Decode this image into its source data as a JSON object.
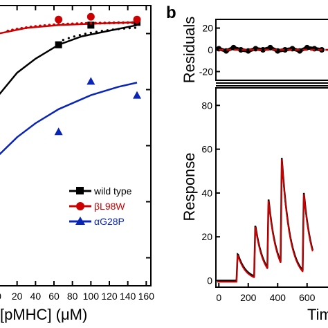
{
  "panel_b_label": "b",
  "chart_data": [
    {
      "type": "scatter",
      "panel": "a",
      "xlabel": "[pMHC] (μM)",
      "ylabel": "",
      "xlim": [
        0,
        165
      ],
      "ylim": [
        0,
        1.0
      ],
      "xticks": [
        0,
        20,
        40,
        60,
        80,
        100,
        120,
        140,
        160
      ],
      "legend_position": "bottom-right",
      "series": [
        {
          "name": "wild type",
          "color": "#000000",
          "marker": "square",
          "points": [
            [
              65,
              0.86
            ],
            [
              100,
              0.93
            ],
            [
              150,
              0.94
            ]
          ],
          "fit": [
            [
              -10,
              0.62
            ],
            [
              0,
              0.68
            ],
            [
              20,
              0.76
            ],
            [
              40,
              0.81
            ],
            [
              65,
              0.86
            ],
            [
              90,
              0.89
            ],
            [
              120,
              0.91
            ],
            [
              150,
              0.93
            ]
          ]
        },
        {
          "name": "βL98W",
          "color": "#cc0000",
          "marker": "circle",
          "points": [
            [
              65,
              0.95
            ],
            [
              100,
              0.96
            ],
            [
              150,
              0.95
            ]
          ],
          "fit": [
            [
              -10,
              0.88
            ],
            [
              0,
              0.9
            ],
            [
              30,
              0.92
            ],
            [
              65,
              0.93
            ],
            [
              100,
              0.935
            ],
            [
              150,
              0.94
            ]
          ]
        },
        {
          "name": "αG28P",
          "color": "#0a24b5",
          "marker": "triangle",
          "points": [
            [
              65,
              0.55
            ],
            [
              100,
              0.73
            ],
            [
              150,
              0.68
            ]
          ],
          "fit": [
            [
              -5,
              0.45
            ],
            [
              20,
              0.53
            ],
            [
              40,
              0.58
            ],
            [
              65,
              0.63
            ],
            [
              100,
              0.68
            ],
            [
              130,
              0.71
            ],
            [
              150,
              0.725
            ]
          ]
        }
      ],
      "legend": [
        "wild type",
        "βL98W",
        "αG28P"
      ]
    },
    {
      "type": "line",
      "panel": "b-residuals",
      "ylabel": "Residuals",
      "ylim": [
        -28,
        28
      ],
      "yticks": [
        -20,
        0,
        20
      ],
      "xlim": [
        -20,
        780
      ],
      "description_series": [
        {
          "name": "residuals",
          "color": "#000000",
          "x": [
            0,
            50,
            100,
            150,
            200,
            250,
            300,
            350,
            400,
            450,
            500,
            550,
            600,
            650,
            700
          ],
          "y": [
            1,
            -1,
            2,
            0,
            -1,
            1,
            0,
            2,
            -1,
            0,
            1,
            -1,
            2,
            1,
            0
          ]
        },
        {
          "name": "zero",
          "color": "#cc0000",
          "x": [
            0,
            780
          ],
          "y": [
            0,
            0
          ]
        }
      ]
    },
    {
      "type": "line",
      "panel": "b-sensorgram",
      "xlabel": "Tim",
      "ylabel": "Response",
      "xlim": [
        -20,
        780
      ],
      "ylim": [
        -3,
        88
      ],
      "xticks": [
        0,
        200,
        400,
        600
      ],
      "yticks": [
        0,
        20,
        40,
        60,
        80
      ],
      "injections": [
        {
          "start": 120,
          "end": 240,
          "peak": 12
        },
        {
          "start": 240,
          "end": 330,
          "peak": 25
        },
        {
          "start": 330,
          "end": 420,
          "peak": 37
        },
        {
          "start": 420,
          "end": 570,
          "peak": 56
        },
        {
          "start": 570,
          "end": 640,
          "peak": 40
        }
      ],
      "series": [
        {
          "name": "data",
          "color": "#000000"
        },
        {
          "name": "fit",
          "color": "#cc0000"
        }
      ]
    }
  ]
}
